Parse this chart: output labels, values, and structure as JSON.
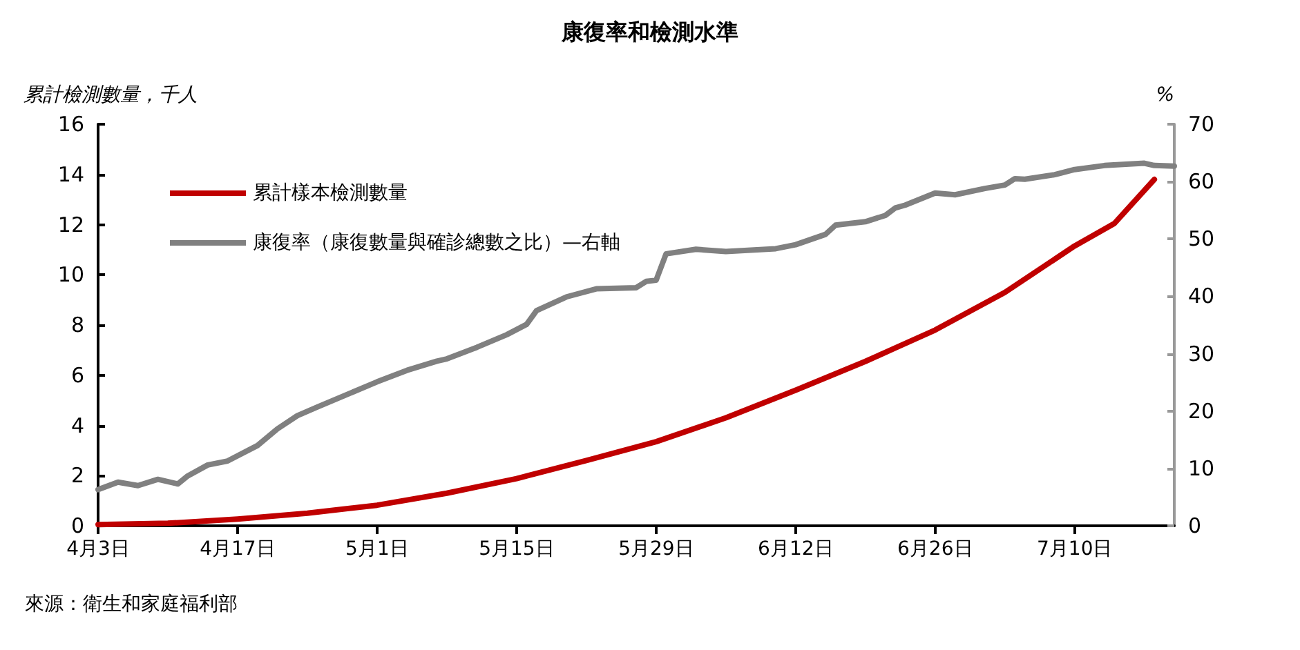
{
  "chart_data": {
    "type": "line",
    "title": "康復率和檢測水準",
    "ylabel": "累計檢測數量，千人",
    "y2label": "%",
    "xlim": [
      "--04-03",
      "--07-20"
    ],
    "xticks": [
      {
        "value": "--04-03",
        "label": "4月3日"
      },
      {
        "value": "--04-17",
        "label": "4月17日"
      },
      {
        "value": "--05-01",
        "label": "5月1日"
      },
      {
        "value": "--05-15",
        "label": "5月15日"
      },
      {
        "value": "--05-29",
        "label": "5月29日"
      },
      {
        "value": "--06-12",
        "label": "6月12日"
      },
      {
        "value": "--06-26",
        "label": "6月26日"
      },
      {
        "value": "--07-10",
        "label": "7月10日"
      }
    ],
    "ylim": [
      0,
      16
    ],
    "yticks": [
      0,
      2,
      4,
      6,
      8,
      10,
      12,
      14,
      16
    ],
    "y2lim": [
      0,
      70
    ],
    "y2ticks": [
      0,
      10,
      20,
      30,
      40,
      50,
      60,
      70
    ],
    "grid": false,
    "legend": "top left",
    "marker": "none",
    "line_style": "solid",
    "series": [
      {
        "name": "累計樣本檢測數量",
        "color": "#c00000",
        "x": [
          "--04-03",
          "--04-10",
          "--04-17",
          "--04-24",
          "--05-01",
          "--05-08",
          "--05-15",
          "--05-22",
          "--05-29",
          "--06-05",
          "--06-12",
          "--06-19",
          "--06-26",
          "--07-03",
          "--07-10",
          "--07-14",
          "--07-18"
        ],
        "values": [
          0.05,
          0.1,
          0.27,
          0.5,
          0.82,
          1.3,
          1.88,
          2.6,
          3.35,
          4.3,
          5.4,
          6.55,
          7.8,
          9.3,
          11.15,
          12.05,
          13.8
        ]
      },
      {
        "name": "康復率（康復數量與確診總數之比）—右軸",
        "color": "#808080",
        "axis": "y2",
        "x": [
          "--04-03",
          "--04-05",
          "--04-07",
          "--04-09",
          "--04-11",
          "--04-12",
          "--04-14",
          "--04-16",
          "--04-19",
          "--04-21",
          "--04-23",
          "--04-25",
          "--04-28",
          "--05-01",
          "--05-04",
          "--05-07",
          "--05-08",
          "--05-11",
          "--05-14",
          "--05-16",
          "--05-17",
          "--05-20",
          "--05-23",
          "--05-27",
          "--05-28",
          "--05-29",
          "--05-30",
          "--06-02",
          "--06-05",
          "--06-10",
          "--06-12",
          "--06-15",
          "--06-16",
          "--06-19",
          "--06-21",
          "--06-22",
          "--06-23",
          "--06-26",
          "--06-28",
          "--07-01",
          "--07-03",
          "--07-04",
          "--07-05",
          "--07-08",
          "--07-10",
          "--07-13",
          "--07-17",
          "--07-18",
          "--07-20"
        ],
        "values": [
          6.3,
          7.6,
          7.0,
          8.1,
          7.3,
          8.7,
          10.6,
          11.3,
          14.0,
          16.9,
          19.2,
          20.7,
          22.9,
          25.1,
          27.1,
          28.7,
          29.1,
          31.1,
          33.3,
          35.1,
          37.5,
          39.9,
          41.3,
          41.5,
          42.6,
          42.8,
          47.4,
          48.2,
          47.8,
          48.3,
          49.0,
          50.8,
          52.4,
          53.0,
          54.1,
          55.4,
          55.9,
          58.0,
          57.7,
          58.8,
          59.4,
          60.5,
          60.4,
          61.2,
          62.1,
          62.8,
          63.2,
          62.8,
          62.7
        ]
      }
    ],
    "annotations": [
      "來源：衛生和家庭福利部"
    ]
  }
}
